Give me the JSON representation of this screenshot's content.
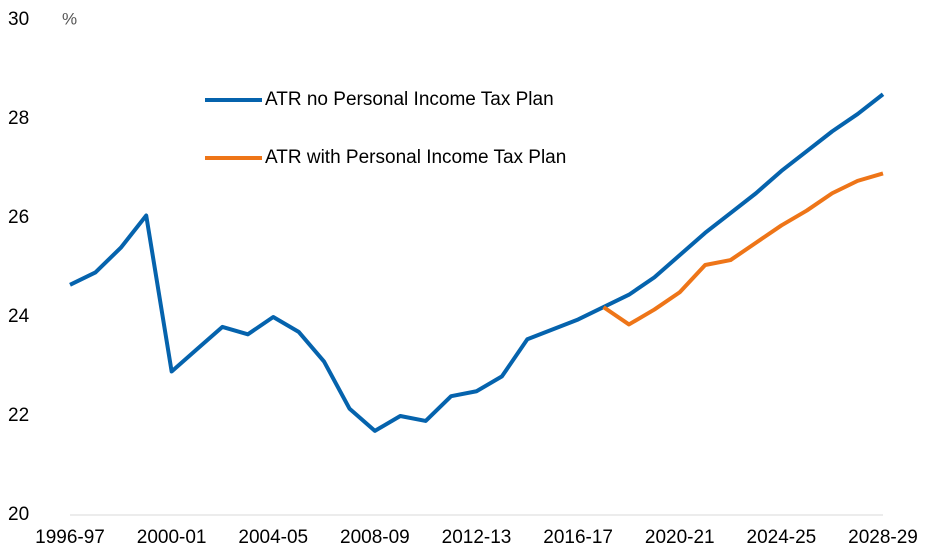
{
  "chart_data": {
    "type": "line",
    "y_unit": "%",
    "categories": [
      "1996-97",
      null,
      null,
      null,
      "2000-01",
      null,
      null,
      null,
      "2004-05",
      null,
      null,
      null,
      "2008-09",
      null,
      null,
      null,
      "2012-13",
      null,
      null,
      null,
      "2016-17",
      null,
      null,
      null,
      "2020-21",
      null,
      null,
      null,
      "2024-25",
      null,
      null,
      null,
      "2028-29"
    ],
    "series": [
      {
        "name": "ATR no Personal Income Tax Plan",
        "color": "#0563ad",
        "values": [
          24.65,
          24.9,
          25.4,
          26.05,
          22.9,
          23.35,
          23.8,
          23.65,
          24.0,
          23.7,
          23.1,
          22.15,
          21.7,
          22.0,
          21.9,
          22.4,
          22.5,
          22.8,
          23.55,
          23.75,
          23.95,
          24.2,
          24.45,
          24.8,
          25.25,
          25.7,
          26.1,
          26.5,
          26.95,
          27.35,
          27.75,
          28.1,
          28.5
        ]
      },
      {
        "name": "ATR with Personal Income Tax Plan",
        "color": "#ee7518",
        "values": [
          null,
          null,
          null,
          null,
          null,
          null,
          null,
          null,
          null,
          null,
          null,
          null,
          null,
          null,
          null,
          null,
          null,
          null,
          null,
          null,
          null,
          24.2,
          23.85,
          24.15,
          24.5,
          25.05,
          25.15,
          25.5,
          25.85,
          26.15,
          26.5,
          26.75,
          26.9
        ]
      }
    ],
    "ylim": [
      20,
      30
    ],
    "yticks": [
      20,
      22,
      24,
      26,
      28,
      30
    ],
    "grid": false
  }
}
